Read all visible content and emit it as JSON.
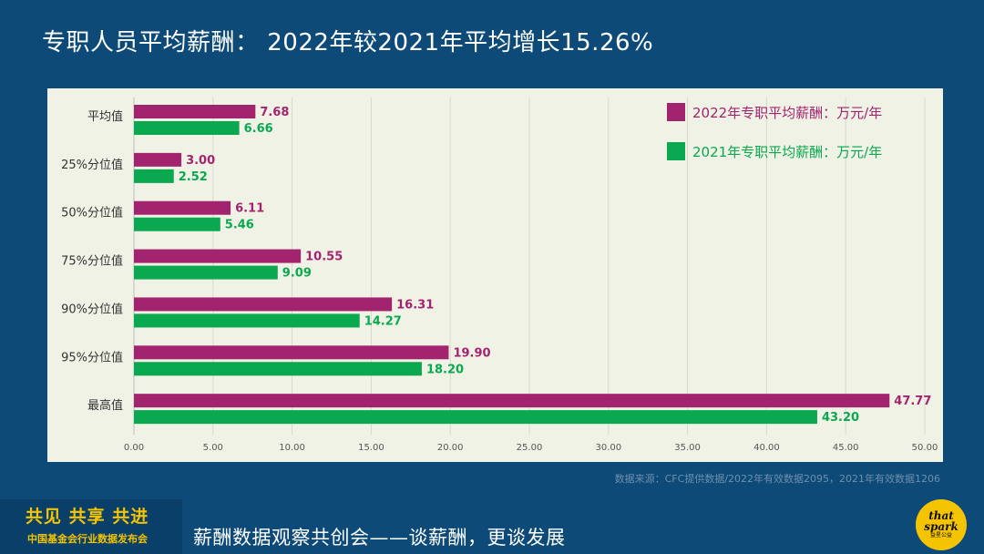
{
  "header": {
    "title": "专职人员平均薪酬： 2022年较2021年平均增长15.26%"
  },
  "chart_data": {
    "type": "bar",
    "orientation": "horizontal",
    "categories": [
      "平均值",
      "25%分位值",
      "50%分位值",
      "75%分位值",
      "90%分位值",
      "95%分位值",
      "最高值"
    ],
    "series": [
      {
        "name": "2022年专职平均薪酬：万元/年",
        "color": "#a3246e",
        "values": [
          7.68,
          3.0,
          6.11,
          10.55,
          16.31,
          19.9,
          47.77
        ]
      },
      {
        "name": "2021年专职平均薪酬：万元/年",
        "color": "#0aa84f",
        "values": [
          6.66,
          2.52,
          5.46,
          9.09,
          14.27,
          18.2,
          43.2
        ]
      }
    ],
    "xlim": [
      0,
      50
    ],
    "xticks": [
      "0.00",
      "5.00",
      "10.00",
      "15.00",
      "20.00",
      "25.00",
      "30.00",
      "35.00",
      "40.00",
      "45.00",
      "50.00"
    ],
    "grid": true,
    "legend_position": "top-right",
    "background": "#f0f2e6"
  },
  "source_note": "数据来源：CFC提供数据/2022年有效数据2095，2021年有效数据1206",
  "footer": {
    "slogan": "共见 共享 共进",
    "organization": "中国基金会行业数据发布会",
    "title": "薪酬数据观察共创会——谈薪酬，更谈发展",
    "logo_line1": "that",
    "logo_line2": "spark",
    "logo_line3": "益星公益"
  }
}
